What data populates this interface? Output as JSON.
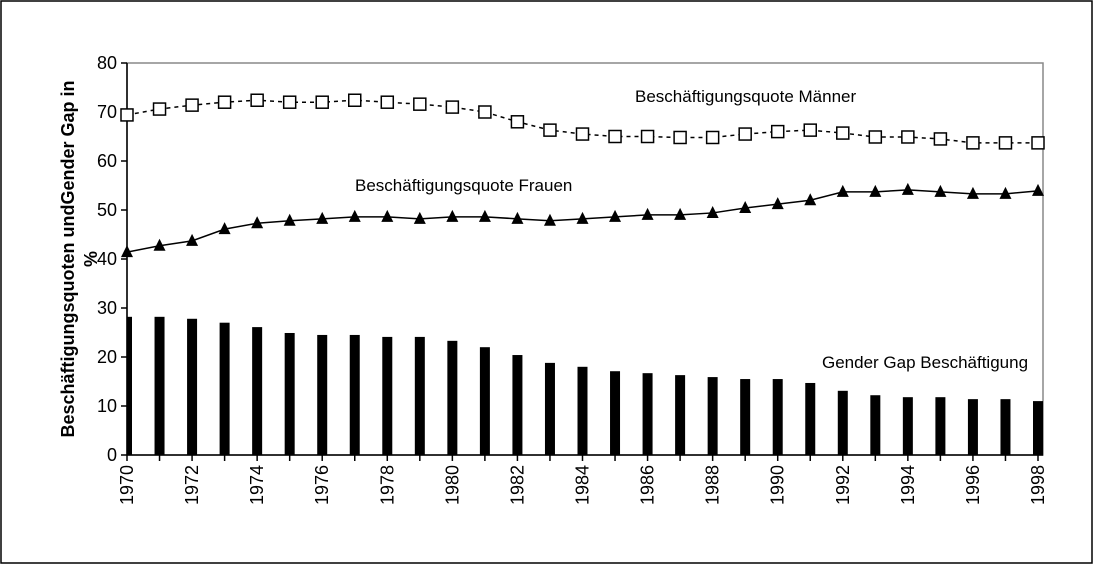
{
  "chart_data": {
    "type": "combo",
    "y_label": [
      "Beschäftigungsquoten undGender Gap in",
      "%"
    ],
    "categories": [
      "1970",
      null,
      "1972",
      null,
      "1974",
      null,
      "1976",
      null,
      "1978",
      null,
      "1980",
      null,
      "1982",
      null,
      "1984",
      null,
      "1986",
      null,
      "1988",
      null,
      "1990",
      null,
      "1992",
      null,
      "1994",
      null,
      "1996",
      null,
      "1998"
    ],
    "ylim": [
      0,
      80
    ],
    "yticks": [
      0,
      10,
      20,
      30,
      40,
      50,
      60,
      70,
      80
    ],
    "grid": false,
    "series": [
      {
        "name": "Beschäftigungsquote Männer",
        "type": "line",
        "marker": "square-open",
        "dashed": true,
        "color": "#000000",
        "values": [
          69.4,
          70.6,
          71.4,
          72,
          72.4,
          72,
          72,
          72.4,
          72,
          71.6,
          71,
          70,
          68,
          66.3,
          65.5,
          65,
          65,
          64.8,
          64.8,
          65.5,
          66,
          66.3,
          65.7,
          64.9,
          64.9,
          64.5,
          63.7,
          63.7,
          63.7
        ]
      },
      {
        "name": "Beschäftigungsquote Frauen",
        "type": "line",
        "marker": "triangle",
        "dashed": false,
        "color": "#000000",
        "values": [
          41.4,
          42.7,
          43.7,
          46.1,
          47.3,
          47.8,
          48.2,
          48.6,
          48.6,
          48.2,
          48.6,
          48.6,
          48.2,
          47.8,
          48.2,
          48.6,
          49,
          49,
          49.4,
          50.4,
          51.2,
          52,
          53.7,
          53.7,
          54.1,
          53.7,
          53.3,
          53.3,
          53.9
        ]
      },
      {
        "name": "Gender Gap Beschäftigung",
        "type": "bar",
        "color": "#000000",
        "values": [
          28.2,
          28.2,
          27.8,
          27,
          26.1,
          24.9,
          24.5,
          24.5,
          24.1,
          24.1,
          23.3,
          22,
          20.4,
          18.8,
          18,
          17.1,
          16.7,
          16.3,
          15.9,
          15.5,
          15.5,
          14.7,
          13.1,
          12.2,
          11.8,
          11.8,
          11.4,
          11.4,
          11
        ]
      }
    ]
  }
}
